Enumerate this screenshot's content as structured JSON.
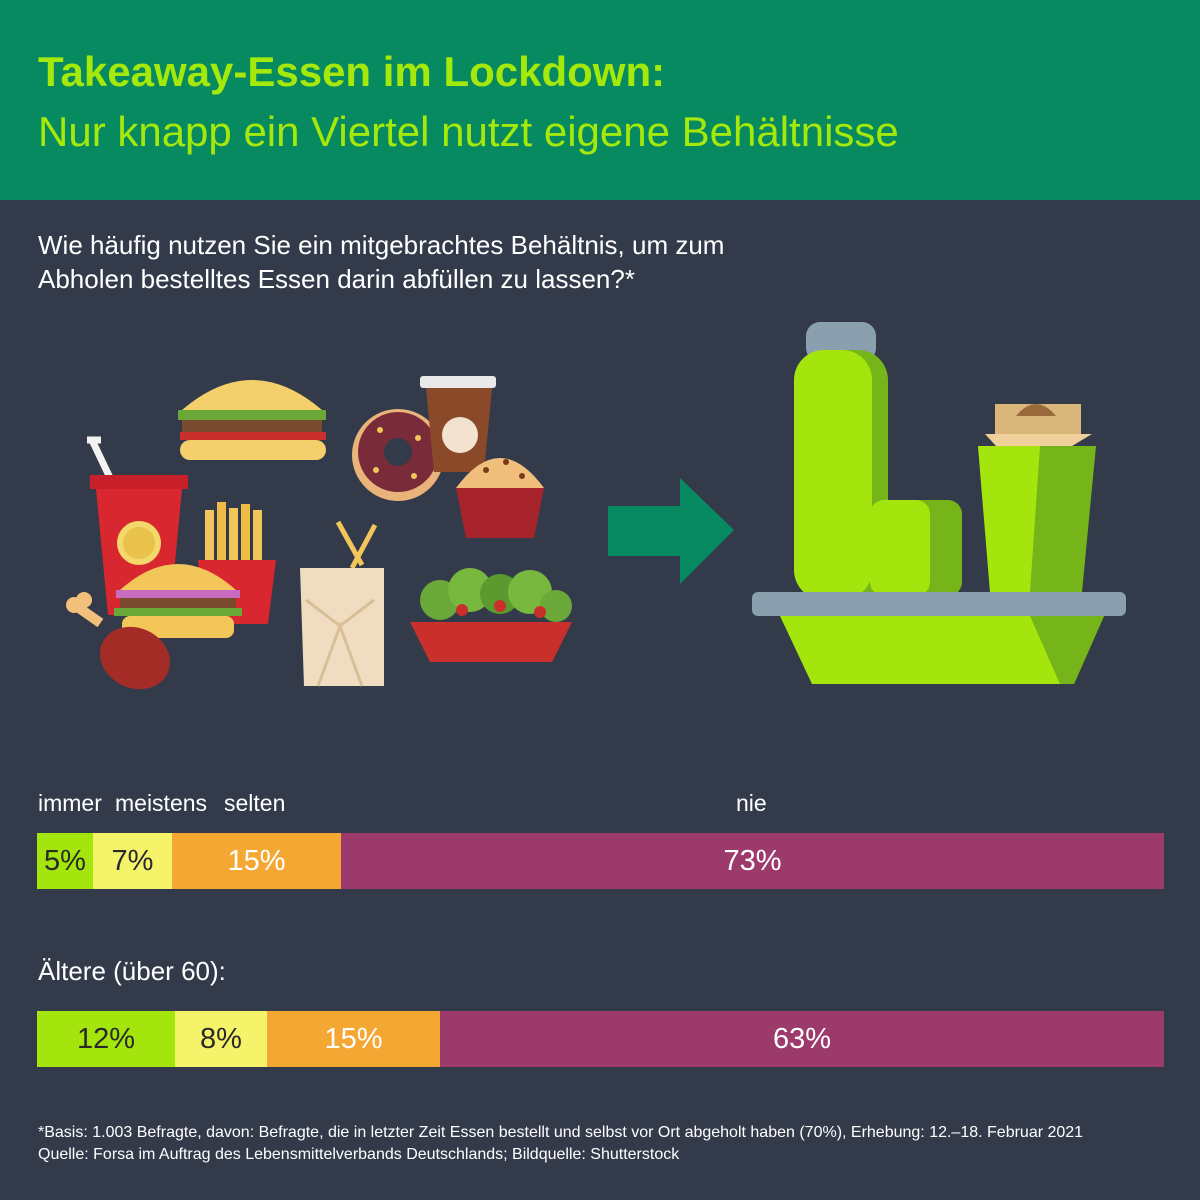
{
  "header": {
    "title": "Takeaway-Essen im Lockdown:",
    "subtitle": "Nur knapp ein Viertel nutzt eigene Behältnisse"
  },
  "question": "Wie häufig nutzen Sie ein mitgebrachtes Behältnis, um zum Abholen bestelltes Essen darin abfüllen zu lassen?*",
  "illustration": {
    "left": [
      "drink-cup-icon",
      "burger-icon",
      "fries-icon",
      "chicken-leg-icon",
      "sandwich-icon",
      "donut-icon",
      "coffee-cup-icon",
      "muffin-icon",
      "takeout-box-icon",
      "salad-icon"
    ],
    "arrow": "arrow-right-icon",
    "right": [
      "thermos-icon",
      "lunchbox-icon",
      "reusable-cup-icon",
      "tray-icon"
    ]
  },
  "chart_data": {
    "type": "bar",
    "stacked": true,
    "orientation": "horizontal",
    "categories": [
      "immer",
      "meistens",
      "selten",
      "nie"
    ],
    "colors": [
      "#a3e50c",
      "#f5f36a",
      "#f5a733",
      "#9c3a6c"
    ],
    "text_colors": [
      "#2a2a2a",
      "#2a2a2a",
      "#ffffff",
      "#ffffff"
    ],
    "series": [
      {
        "name": "",
        "values": [
          5,
          7,
          15,
          73
        ],
        "labels": [
          "5%",
          "7%",
          "15%",
          "73%"
        ]
      },
      {
        "name": "Ältere (über 60):",
        "values": [
          12,
          8,
          15,
          63
        ],
        "labels": [
          "12%",
          "8%",
          "15%",
          "63%"
        ]
      }
    ]
  },
  "footer": {
    "line1": "*Basis: 1.003 Befragte, davon: Befragte, die in letzter Zeit Essen bestellt und selbst vor Ort abgeholt haben (70%), Erhebung: 12.–18. Februar 2021",
    "line2": "Quelle: Forsa im Auftrag des Lebensmittelverbands Deutschlands; Bildquelle: Shutterstock"
  }
}
